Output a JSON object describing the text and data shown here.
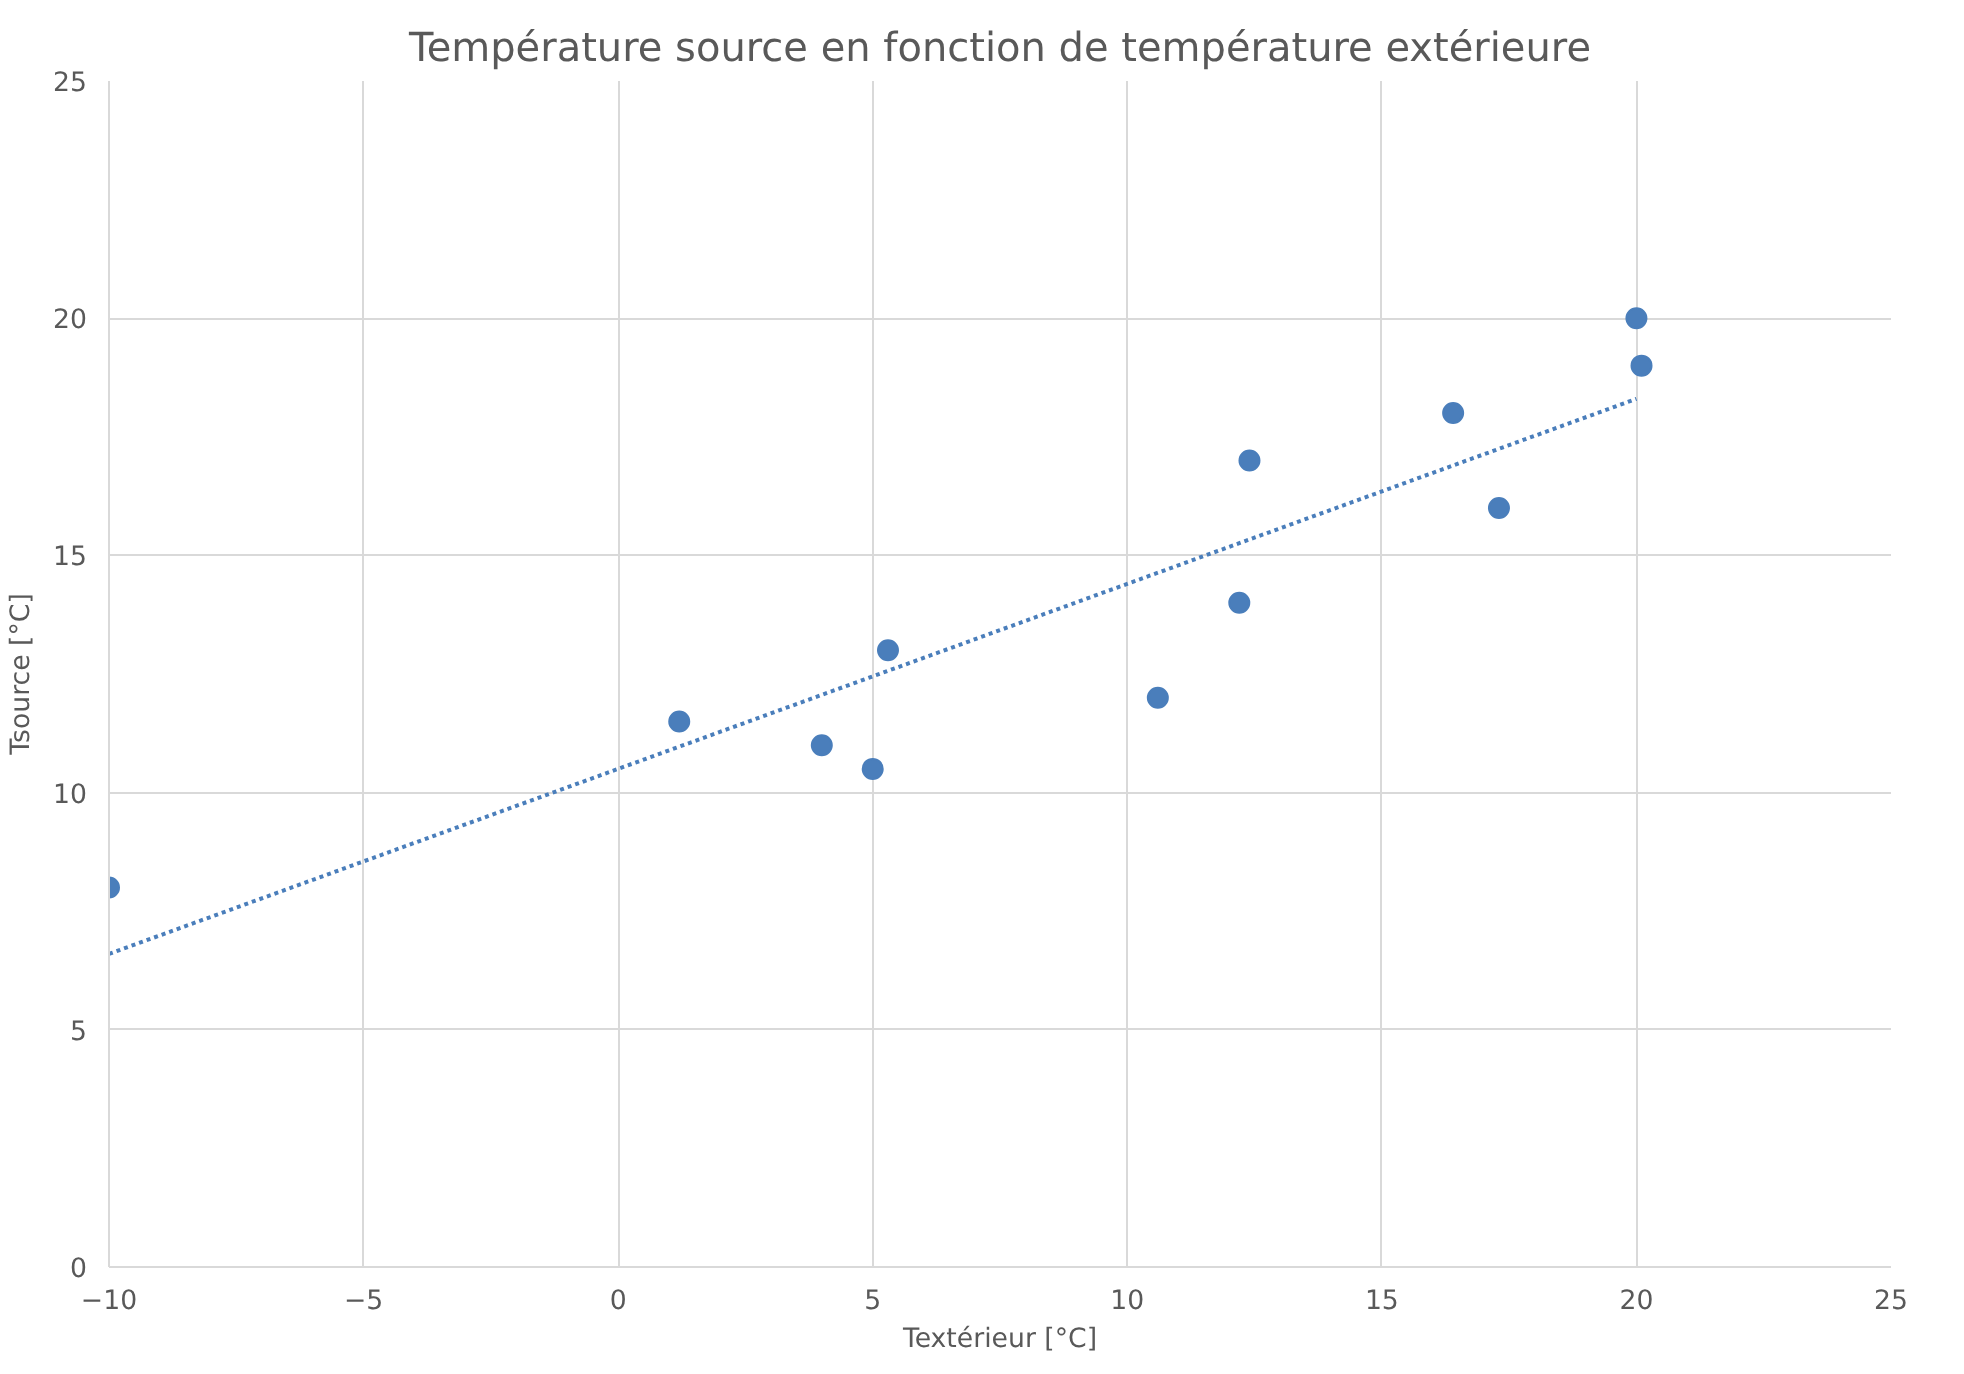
{
  "chart_data": {
    "type": "scatter",
    "title": "Température source en fonction de température extérieure",
    "xlabel": "Textérieur [°C]",
    "ylabel": "Tsource [°C]",
    "series": [
      {
        "color": "#4a7ebb",
        "marker": "circle",
        "x": [
          -10,
          1.2,
          4,
          5,
          5.3,
          10.6,
          12.4,
          12.2,
          16.4,
          17.3,
          20,
          20.1
        ],
        "values": [
          8,
          11.5,
          11,
          10.5,
          13,
          12,
          17,
          14,
          18,
          16,
          20,
          19
        ]
      },
      {
        "type": "line",
        "color": "#4a7ebb",
        "line_style": "dotted",
        "x": [
          -10,
          20
        ],
        "values": [
          6.6,
          18.3
        ]
      }
    ],
    "xlim": [
      -10,
      25
    ],
    "ylim": [
      0,
      25
    ],
    "xticks": [
      -10,
      -5,
      0,
      5,
      10,
      15,
      20,
      25
    ],
    "yticks": [
      0,
      5,
      10,
      15,
      20,
      25
    ],
    "grid": true
  }
}
